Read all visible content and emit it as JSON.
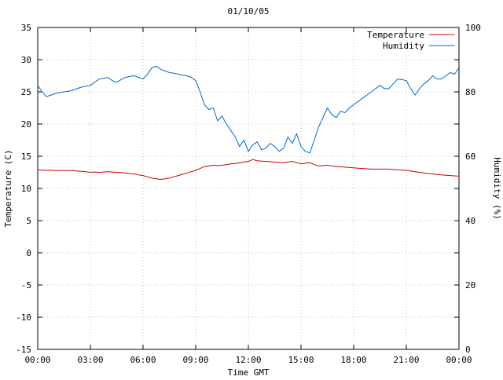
{
  "title": "01/10/05",
  "chart_data": {
    "type": "line",
    "title": "01/10/05",
    "xlabel": "Time GMT",
    "ylabel_left": "Temperature (C)",
    "ylabel_right": "Humidity (%)",
    "background_color": "#ffffff",
    "grid": true,
    "grid_color": "#c0c0c0",
    "border_color": "#000000",
    "legend_position": "top-right-inside",
    "x_range_hours": [
      0,
      24
    ],
    "x_tick_hours": [
      0,
      3,
      6,
      9,
      12,
      15,
      18,
      21,
      24
    ],
    "x_tick_labels": [
      "00:00",
      "03:00",
      "06:00",
      "09:00",
      "12:00",
      "15:00",
      "18:00",
      "21:00",
      "00:00"
    ],
    "y_left_range": [
      -15,
      35
    ],
    "y_left_ticks": [
      -15,
      -10,
      -5,
      0,
      5,
      10,
      15,
      20,
      25,
      30,
      35
    ],
    "y_right_range": [
      0,
      100
    ],
    "y_right_ticks": [
      0,
      20,
      40,
      60,
      80,
      100
    ],
    "series": [
      {
        "name": "Temperature",
        "axis": "left",
        "color": "#cc0000",
        "x_start": 0,
        "x_step": 0.25,
        "values": [
          12.9,
          12.85,
          12.8,
          12.85,
          12.75,
          12.8,
          12.8,
          12.75,
          12.8,
          12.7,
          12.65,
          12.6,
          12.5,
          12.55,
          12.5,
          12.55,
          12.6,
          12.55,
          12.5,
          12.45,
          12.4,
          12.3,
          12.25,
          12.1,
          12.0,
          11.8,
          11.6,
          11.5,
          11.4,
          11.5,
          11.6,
          11.8,
          12.0,
          12.2,
          12.4,
          12.6,
          12.8,
          13.1,
          13.4,
          13.5,
          13.6,
          13.55,
          13.6,
          13.7,
          13.8,
          13.85,
          14.0,
          14.1,
          14.2,
          14.5,
          14.3,
          14.25,
          14.2,
          14.15,
          14.1,
          14.05,
          14.0,
          14.1,
          14.2,
          14.0,
          13.8,
          13.9,
          14.0,
          13.7,
          13.5,
          13.55,
          13.6,
          13.5,
          13.4,
          13.35,
          13.3,
          13.25,
          13.2,
          13.15,
          13.1,
          13.05,
          13.0,
          13.0,
          13.0,
          13.0,
          13.0,
          12.95,
          12.9,
          12.85,
          12.8,
          12.7,
          12.6,
          12.5,
          12.4,
          12.3,
          12.25,
          12.15,
          12.1,
          12.05,
          12.0,
          11.95,
          11.9
        ]
      },
      {
        "name": "Humidity",
        "axis": "right",
        "color": "#0066cc",
        "x_start": 0,
        "x_step": 0.25,
        "values": [
          82,
          80,
          78.5,
          79,
          79.5,
          79.8,
          80,
          80.2,
          80.5,
          81,
          81.5,
          81.8,
          82,
          83,
          84,
          84.2,
          84.5,
          83.5,
          83,
          83.8,
          84.5,
          84.8,
          85,
          84.5,
          84,
          85.5,
          87.5,
          88,
          87,
          86.5,
          86,
          85.8,
          85.5,
          85.2,
          85,
          84.5,
          83.5,
          80,
          76,
          74.5,
          75,
          71,
          72.5,
          70,
          68,
          66,
          63,
          65,
          61.5,
          63.5,
          64.5,
          62,
          62.5,
          64,
          63,
          61.5,
          62.5,
          66,
          64,
          67,
          63,
          61.5,
          61,
          65,
          69,
          72,
          75,
          73,
          72,
          74,
          73.5,
          75,
          76,
          77,
          78,
          79,
          80,
          81,
          82,
          81,
          81,
          82.5,
          84,
          83.8,
          83.5,
          81,
          79,
          81,
          82.5,
          83.5,
          85,
          84,
          84,
          85,
          86,
          85.5,
          87.5
        ]
      }
    ]
  }
}
